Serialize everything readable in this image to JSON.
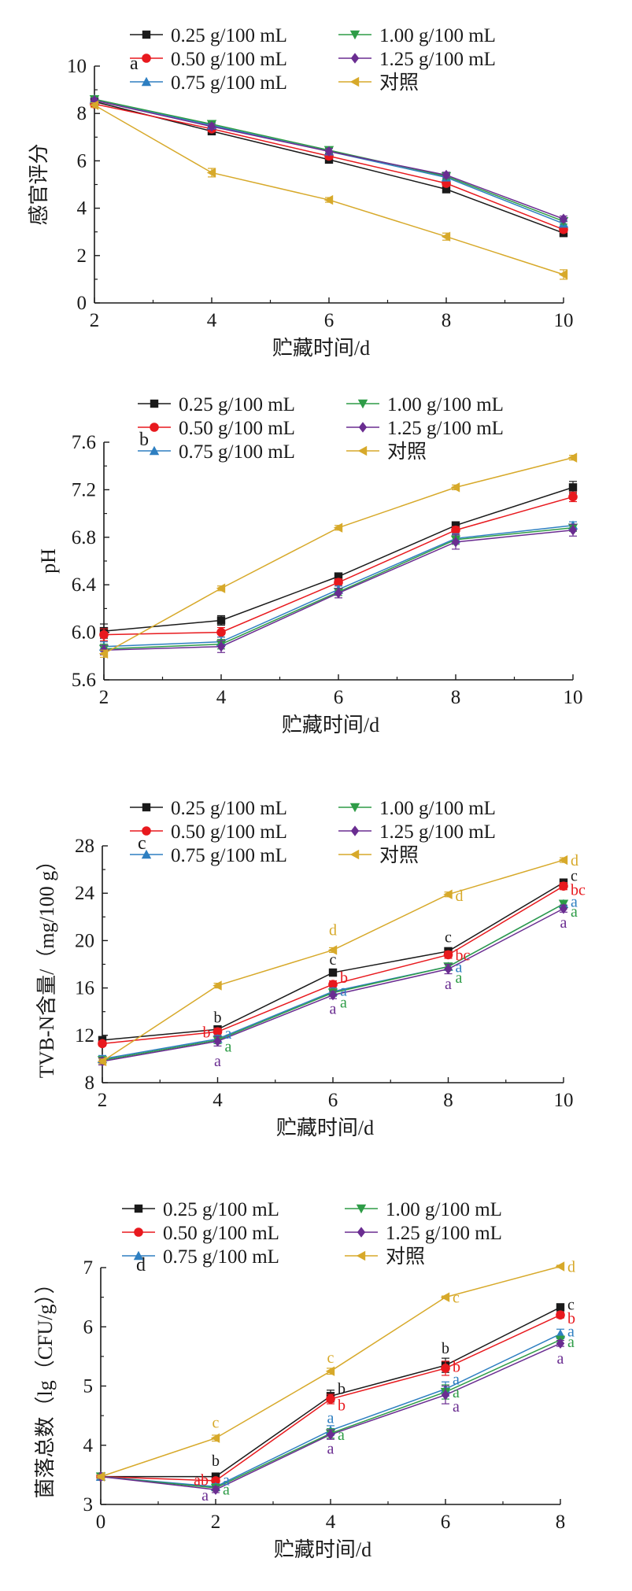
{
  "chart_data": [
    {
      "type": "line",
      "panel_label": "a",
      "ylabel": "感官评分",
      "xlabel": "贮藏时间/d",
      "x": [
        2,
        4,
        6,
        8,
        10
      ],
      "xlim": [
        2,
        10
      ],
      "ylim": [
        0,
        10
      ],
      "xticks": [
        2,
        4,
        6,
        8,
        10
      ],
      "yticks": [
        0,
        2,
        4,
        6,
        8,
        10
      ],
      "legend_position": "top",
      "series": [
        {
          "name": "0.25 g/100 mL",
          "color": "#1a1a1a",
          "marker": "square",
          "values": [
            8.5,
            7.25,
            6.05,
            4.8,
            2.95
          ],
          "errors": [
            0.1,
            0.15,
            0.12,
            0.12,
            0.12
          ]
        },
        {
          "name": "0.50 g/100 mL",
          "color": "#e8191e",
          "marker": "circle",
          "values": [
            8.4,
            7.35,
            6.2,
            5.05,
            3.1
          ],
          "errors": [
            0.1,
            0.12,
            0.12,
            0.12,
            0.12
          ]
        },
        {
          "name": "0.75 g/100 mL",
          "color": "#2e7fc1",
          "marker": "triangle-up",
          "values": [
            8.6,
            7.5,
            6.4,
            5.3,
            3.35
          ],
          "errors": [
            0.1,
            0.12,
            0.12,
            0.12,
            0.12
          ]
        },
        {
          "name": "1.00 g/100 mL",
          "color": "#2e9c47",
          "marker": "triangle-down",
          "values": [
            8.6,
            7.55,
            6.45,
            5.35,
            3.45
          ],
          "errors": [
            0.1,
            0.12,
            0.12,
            0.12,
            0.12
          ]
        },
        {
          "name": "1.25 g/100 mL",
          "color": "#6a2d91",
          "marker": "diamond",
          "values": [
            8.55,
            7.45,
            6.4,
            5.4,
            3.55
          ],
          "errors": [
            0.1,
            0.12,
            0.12,
            0.12,
            0.12
          ]
        },
        {
          "name": "对照",
          "color": "#d7a92a",
          "marker": "triangle-left",
          "values": [
            8.35,
            5.5,
            4.35,
            2.8,
            1.2
          ],
          "errors": [
            0.1,
            0.18,
            0.1,
            0.15,
            0.2
          ]
        }
      ],
      "annotations": []
    },
    {
      "type": "line",
      "panel_label": "b",
      "ylabel": "pH",
      "xlabel": "贮藏时间/d",
      "x": [
        2,
        4,
        6,
        8,
        10
      ],
      "xlim": [
        2,
        10
      ],
      "ylim": [
        5.6,
        7.6
      ],
      "xticks": [
        2,
        4,
        6,
        8,
        10
      ],
      "yticks": [
        "5.6",
        "6.0",
        "6.4",
        "6.8",
        "7.2",
        "7.6"
      ],
      "legend_position": "top",
      "series": [
        {
          "name": "0.25 g/100 mL",
          "color": "#1a1a1a",
          "marker": "square",
          "values": [
            6.01,
            6.1,
            6.47,
            6.9,
            7.22
          ],
          "errors": [
            0.06,
            0.04,
            0.03,
            0.03,
            0.05
          ]
        },
        {
          "name": "0.50 g/100 mL",
          "color": "#e8191e",
          "marker": "circle",
          "values": [
            5.98,
            6.0,
            6.42,
            6.86,
            7.14
          ],
          "errors": [
            0.05,
            0.04,
            0.03,
            0.03,
            0.04
          ]
        },
        {
          "name": "0.75 g/100 mL",
          "color": "#2e7fc1",
          "marker": "triangle-up",
          "values": [
            5.88,
            5.92,
            6.36,
            6.79,
            6.9
          ],
          "errors": [
            0.04,
            0.04,
            0.03,
            0.04,
            0.03
          ]
        },
        {
          "name": "1.00 g/100 mL",
          "color": "#2e9c47",
          "marker": "triangle-down",
          "values": [
            5.86,
            5.9,
            6.34,
            6.78,
            6.88
          ],
          "errors": [
            0.04,
            0.04,
            0.03,
            0.04,
            0.03
          ]
        },
        {
          "name": "1.25 g/100 mL",
          "color": "#6a2d91",
          "marker": "diamond",
          "values": [
            5.85,
            5.88,
            6.33,
            6.76,
            6.86
          ],
          "errors": [
            0.04,
            0.05,
            0.04,
            0.06,
            0.05
          ]
        },
        {
          "name": "对照",
          "color": "#d7a92a",
          "marker": "triangle-left",
          "values": [
            5.82,
            6.37,
            6.88,
            7.22,
            7.47
          ],
          "errors": [
            0.03,
            0.02,
            0.02,
            0.02,
            0.02
          ]
        }
      ],
      "annotations": []
    },
    {
      "type": "line",
      "panel_label": "c",
      "ylabel": "TVB-N含量/（mg/100 g）",
      "xlabel": "贮藏时间/d",
      "x": [
        2,
        4,
        6,
        8,
        10
      ],
      "xlim": [
        2,
        10
      ],
      "ylim": [
        8,
        28
      ],
      "xticks": [
        2,
        4,
        6,
        8,
        10
      ],
      "yticks": [
        8,
        12,
        16,
        20,
        24,
        28
      ],
      "legend_position": "top",
      "series": [
        {
          "name": "0.25 g/100 mL",
          "color": "#1a1a1a",
          "marker": "square",
          "values": [
            11.6,
            12.5,
            17.3,
            19.1,
            24.9
          ],
          "errors": [
            0.2,
            0.3,
            0.3,
            0.3,
            0.3
          ]
        },
        {
          "name": "0.50 g/100 mL",
          "color": "#e8191e",
          "marker": "circle",
          "values": [
            11.3,
            12.3,
            16.3,
            18.8,
            24.6
          ],
          "errors": [
            0.2,
            0.3,
            0.3,
            0.3,
            0.3
          ]
        },
        {
          "name": "0.75 g/100 mL",
          "color": "#2e7fc1",
          "marker": "triangle-up",
          "values": [
            10.0,
            11.7,
            15.7,
            17.8,
            23.1
          ],
          "errors": [
            0.3,
            0.3,
            0.3,
            0.3,
            0.3
          ]
        },
        {
          "name": "1.00 g/100 mL",
          "color": "#2e9c47",
          "marker": "triangle-down",
          "values": [
            9.9,
            11.6,
            15.6,
            17.8,
            23.1
          ],
          "errors": [
            0.3,
            0.3,
            0.3,
            0.3,
            0.3
          ]
        },
        {
          "name": "1.25 g/100 mL",
          "color": "#6a2d91",
          "marker": "diamond",
          "values": [
            9.8,
            11.5,
            15.4,
            17.6,
            22.7
          ],
          "errors": [
            0.3,
            0.4,
            0.3,
            0.4,
            0.3
          ]
        },
        {
          "name": "对照",
          "color": "#d7a92a",
          "marker": "triangle-left",
          "values": [
            9.8,
            16.2,
            19.2,
            23.9,
            26.8
          ],
          "errors": [
            0.2,
            0.2,
            0.2,
            0.2,
            0.2
          ]
        }
      ],
      "annotations": [
        {
          "x": 4,
          "y": 13.4,
          "text": "b",
          "color": "#1a1a1a",
          "side": "above"
        },
        {
          "x": 4,
          "y": 12.3,
          "text": "b",
          "color": "#e8191e",
          "side": "left"
        },
        {
          "x": 4,
          "y": 12.2,
          "text": "a",
          "color": "#2e7fc1",
          "side": "right"
        },
        {
          "x": 4,
          "y": 11.1,
          "text": "a",
          "color": "#2e9c47",
          "side": "right"
        },
        {
          "x": 4,
          "y": 10.0,
          "text": "a",
          "color": "#6a2d91",
          "side": "below"
        },
        {
          "x": 6,
          "y": 20.8,
          "text": "d",
          "color": "#d7a92a",
          "side": "above"
        },
        {
          "x": 6,
          "y": 18.3,
          "text": "c",
          "color": "#1a1a1a",
          "side": "above"
        },
        {
          "x": 6,
          "y": 16.9,
          "text": "b",
          "color": "#e8191e",
          "side": "right"
        },
        {
          "x": 6,
          "y": 15.8,
          "text": "a",
          "color": "#2e7fc1",
          "side": "right"
        },
        {
          "x": 6,
          "y": 14.8,
          "text": "a",
          "color": "#2e9c47",
          "side": "right"
        },
        {
          "x": 6,
          "y": 14.4,
          "text": "a",
          "color": "#6a2d91",
          "side": "below"
        },
        {
          "x": 8,
          "y": 23.8,
          "text": "d",
          "color": "#d7a92a",
          "side": "right"
        },
        {
          "x": 8,
          "y": 20.2,
          "text": "c",
          "color": "#1a1a1a",
          "side": "above"
        },
        {
          "x": 8,
          "y": 18.8,
          "text": "bc",
          "color": "#e8191e",
          "side": "right"
        },
        {
          "x": 8,
          "y": 17.8,
          "text": "a",
          "color": "#2e7fc1",
          "side": "right"
        },
        {
          "x": 8,
          "y": 16.9,
          "text": "a",
          "color": "#2e9c47",
          "side": "right"
        },
        {
          "x": 8,
          "y": 16.5,
          "text": "a",
          "color": "#6a2d91",
          "side": "below"
        },
        {
          "x": 10,
          "y": 26.8,
          "text": "d",
          "color": "#d7a92a",
          "side": "right"
        },
        {
          "x": 10,
          "y": 25.5,
          "text": "c",
          "color": "#1a1a1a",
          "side": "right"
        },
        {
          "x": 10,
          "y": 24.3,
          "text": "bc",
          "color": "#e8191e",
          "side": "right"
        },
        {
          "x": 10,
          "y": 23.3,
          "text": "a",
          "color": "#2e7fc1",
          "side": "right"
        },
        {
          "x": 10,
          "y": 22.5,
          "text": "a",
          "color": "#2e9c47",
          "side": "right"
        },
        {
          "x": 10,
          "y": 21.7,
          "text": "a",
          "color": "#6a2d91",
          "side": "below"
        }
      ]
    },
    {
      "type": "line",
      "panel_label": "d",
      "ylabel": "菌落总数（lg（CFU/g））",
      "xlabel": "贮藏时间/d",
      "x": [
        0,
        2,
        4,
        6,
        8
      ],
      "xlim": [
        0,
        8
      ],
      "ylim": [
        3,
        7
      ],
      "xticks": [
        0,
        2,
        4,
        6,
        8
      ],
      "yticks": [
        3,
        4,
        5,
        6,
        7
      ],
      "legend_position": "top",
      "series": [
        {
          "name": "0.25 g/100 mL",
          "color": "#1a1a1a",
          "marker": "square",
          "values": [
            3.47,
            3.47,
            4.83,
            5.35,
            6.33
          ],
          "errors": [
            0.03,
            0.04,
            0.1,
            0.12,
            0.04
          ]
        },
        {
          "name": "0.50 g/100 mL",
          "color": "#e8191e",
          "marker": "circle",
          "values": [
            3.47,
            3.4,
            4.78,
            5.3,
            6.2
          ],
          "errors": [
            0.03,
            0.04,
            0.08,
            0.12,
            0.05
          ]
        },
        {
          "name": "0.75 g/100 mL",
          "color": "#2e7fc1",
          "marker": "triangle-up",
          "values": [
            3.47,
            3.3,
            4.25,
            4.95,
            5.88
          ],
          "errors": [
            0.03,
            0.05,
            0.08,
            0.12,
            0.08
          ]
        },
        {
          "name": "1.00 g/100 mL",
          "color": "#2e9c47",
          "marker": "triangle-down",
          "values": [
            3.47,
            3.28,
            4.2,
            4.9,
            5.78
          ],
          "errors": [
            0.03,
            0.05,
            0.08,
            0.12,
            0.06
          ]
        },
        {
          "name": "1.25 g/100 mL",
          "color": "#6a2d91",
          "marker": "diamond",
          "values": [
            3.47,
            3.25,
            4.18,
            4.85,
            5.72
          ],
          "errors": [
            0.03,
            0.05,
            0.08,
            0.15,
            0.05
          ]
        },
        {
          "name": "对照",
          "color": "#d7a92a",
          "marker": "triangle-left",
          "values": [
            3.47,
            4.12,
            5.25,
            6.5,
            7.02
          ],
          "errors": [
            0.03,
            0.05,
            0.05,
            0.02,
            0.02
          ]
        }
      ],
      "annotations": [
        {
          "x": 2,
          "y": 4.36,
          "text": "c",
          "color": "#d7a92a",
          "side": "above"
        },
        {
          "x": 2,
          "y": 3.72,
          "text": "b",
          "color": "#1a1a1a",
          "side": "above"
        },
        {
          "x": 2,
          "y": 3.42,
          "text": "ab",
          "color": "#e8191e",
          "side": "left"
        },
        {
          "x": 2,
          "y": 3.42,
          "text": "a",
          "color": "#2e7fc1",
          "side": "right"
        },
        {
          "x": 2,
          "y": 3.26,
          "text": "a",
          "color": "#2e9c47",
          "side": "right"
        },
        {
          "x": 2,
          "y": 3.16,
          "text": "a",
          "color": "#6a2d91",
          "side": "left"
        },
        {
          "x": 4,
          "y": 5.46,
          "text": "c",
          "color": "#d7a92a",
          "side": "above"
        },
        {
          "x": 4,
          "y": 4.96,
          "text": "b",
          "color": "#1a1a1a",
          "side": "right"
        },
        {
          "x": 4,
          "y": 4.68,
          "text": "b",
          "color": "#e8191e",
          "side": "right"
        },
        {
          "x": 4,
          "y": 4.44,
          "text": "a",
          "color": "#2e7fc1",
          "side": "above"
        },
        {
          "x": 4,
          "y": 4.18,
          "text": "a",
          "color": "#2e9c47",
          "side": "right"
        },
        {
          "x": 4,
          "y": 3.98,
          "text": "a",
          "color": "#6a2d91",
          "side": "below"
        },
        {
          "x": 6,
          "y": 6.5,
          "text": "c",
          "color": "#d7a92a",
          "side": "right"
        },
        {
          "x": 6,
          "y": 5.62,
          "text": "b",
          "color": "#1a1a1a",
          "side": "above"
        },
        {
          "x": 6,
          "y": 5.33,
          "text": "b",
          "color": "#e8191e",
          "side": "right"
        },
        {
          "x": 6,
          "y": 5.12,
          "text": "a",
          "color": "#2e7fc1",
          "side": "right"
        },
        {
          "x": 6,
          "y": 4.9,
          "text": "a",
          "color": "#2e9c47",
          "side": "right"
        },
        {
          "x": 6,
          "y": 4.66,
          "text": "a",
          "color": "#6a2d91",
          "side": "right"
        },
        {
          "x": 8,
          "y": 7.02,
          "text": "d",
          "color": "#d7a92a",
          "side": "right"
        },
        {
          "x": 8,
          "y": 6.38,
          "text": "c",
          "color": "#1a1a1a",
          "side": "right"
        },
        {
          "x": 8,
          "y": 6.15,
          "text": "b",
          "color": "#e8191e",
          "side": "right"
        },
        {
          "x": 8,
          "y": 5.93,
          "text": "a",
          "color": "#2e7fc1",
          "side": "right"
        },
        {
          "x": 8,
          "y": 5.75,
          "text": "a",
          "color": "#2e9c47",
          "side": "right"
        },
        {
          "x": 8,
          "y": 5.5,
          "text": "a",
          "color": "#6a2d91",
          "side": "below"
        }
      ]
    }
  ]
}
